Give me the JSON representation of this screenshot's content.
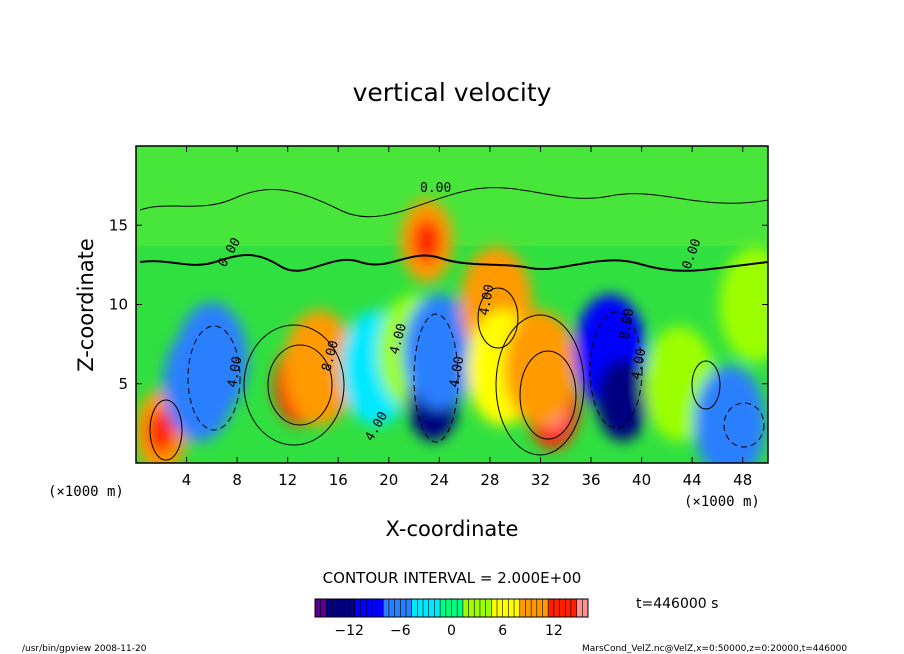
{
  "chart_data": {
    "type": "heatmap",
    "title": "vertical velocity",
    "xlabel": "X-coordinate",
    "ylabel": "Z-coordinate",
    "x_unit": "(×1000 m)",
    "y_unit": "(×1000 m)",
    "xlim": [
      0,
      50
    ],
    "ylim": [
      0,
      20
    ],
    "x_ticks": [
      4,
      8,
      12,
      16,
      20,
      24,
      28,
      32,
      36,
      40,
      44,
      48
    ],
    "y_ticks": [
      5,
      10,
      15
    ],
    "contour_interval_text": "CONTOUR INTERVAL = 2.000E+00",
    "contour_labels": [
      "0.00",
      "0.00",
      "0.00",
      "4.00",
      "4.00",
      "4.00",
      "4.00",
      "4.00",
      "4.00",
      "8.00",
      "8.00"
    ],
    "time_text": "t=446000 s",
    "colorbar": {
      "min": -16,
      "max": 16,
      "ticks": [
        -12,
        -6,
        0,
        6,
        12
      ],
      "colors": [
        "#5a0090",
        "#000080",
        "#0000ff",
        "#2a7fff",
        "#00e8ff",
        "#00ff80",
        "#9cff00",
        "#ffff00",
        "#ff9a00",
        "#ff2000",
        "#ff9090"
      ]
    },
    "cells": [
      {
        "x": 2,
        "z": 2,
        "w": 10
      },
      {
        "x": 5,
        "z": 5,
        "w": -6
      },
      {
        "x": 6,
        "z": 6.5,
        "w": -7
      },
      {
        "x": 13,
        "z": 5,
        "w": 13
      },
      {
        "x": 14.5,
        "z": 6,
        "w": 9
      },
      {
        "x": 19,
        "z": 6,
        "w": -4
      },
      {
        "x": 22,
        "z": 7,
        "w": 2
      },
      {
        "x": 23.5,
        "z": 4,
        "w": -12
      },
      {
        "x": 24,
        "z": 7,
        "w": -7
      },
      {
        "x": 23,
        "z": 14,
        "w": 10
      },
      {
        "x": 28.5,
        "z": 10,
        "w": 8
      },
      {
        "x": 29,
        "z": 6,
        "w": 6
      },
      {
        "x": 33,
        "z": 3.5,
        "w": 14
      },
      {
        "x": 32,
        "z": 6,
        "w": 9
      },
      {
        "x": 37.5,
        "z": 7,
        "w": -9
      },
      {
        "x": 38.5,
        "z": 4,
        "w": -12
      },
      {
        "x": 43,
        "z": 5,
        "w": 4
      },
      {
        "x": 47,
        "z": 2.5,
        "w": -5
      },
      {
        "x": 49,
        "z": 10,
        "w": 3
      }
    ]
  },
  "footer": {
    "left": "/usr/bin/gpview   2008-11-20",
    "right": "MarsCond_VelZ.nc@VelZ,x=0:50000,z=0:20000,t=446000"
  }
}
